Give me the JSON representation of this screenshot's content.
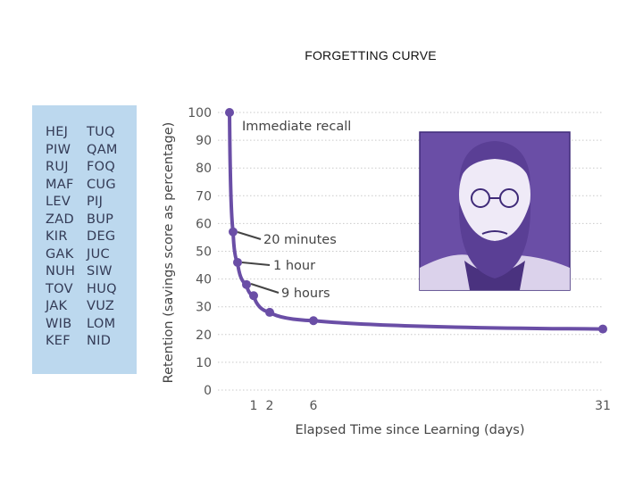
{
  "slide": {
    "title": "FORGETTING CURVE"
  },
  "syllables": {
    "column1": [
      "HEJ",
      "PIW",
      "RUJ",
      "MAF",
      "LEV",
      "ZAD",
      "KIR",
      "GAK",
      "NUH",
      "TOV",
      "JAK",
      "WIB",
      "KEF"
    ],
    "column2": [
      "TUQ",
      "QAM",
      "FOQ",
      "CUG",
      "PIJ",
      "BUP",
      "DEG",
      "JUC",
      "SIW",
      "HUQ",
      "VUZ",
      "LOM",
      "NID"
    ]
  },
  "portrait": {
    "background": "#6a4ea6",
    "icon": "portrait-ebbinghaus-icon"
  },
  "chart_data": {
    "type": "line",
    "xlabel": "Elapsed Time since Learning (days)",
    "ylabel": "Retention (savings score as percentage)",
    "ylim": [
      0,
      100
    ],
    "yticks": [
      0,
      10,
      20,
      30,
      40,
      50,
      60,
      70,
      80,
      90,
      100
    ],
    "xticks": [
      "1",
      "2",
      "6",
      "31"
    ],
    "grid": "horizontal-dotted",
    "line_color": "#6a4ea6",
    "points": [
      {
        "x": 0,
        "y": 100
      },
      {
        "x": 0.014,
        "y": 57
      },
      {
        "x": 0.042,
        "y": 46
      },
      {
        "x": 0.375,
        "y": 38
      },
      {
        "x": 1,
        "y": 34
      },
      {
        "x": 2,
        "y": 28
      },
      {
        "x": 6,
        "y": 25
      },
      {
        "x": 31,
        "y": 22
      }
    ],
    "annotations": [
      {
        "label": "Immediate recall",
        "point": 0
      },
      {
        "label": "20 minutes",
        "point": 1
      },
      {
        "label": "1 hour",
        "point": 2
      },
      {
        "label": "9 hours",
        "point": 3
      }
    ]
  }
}
